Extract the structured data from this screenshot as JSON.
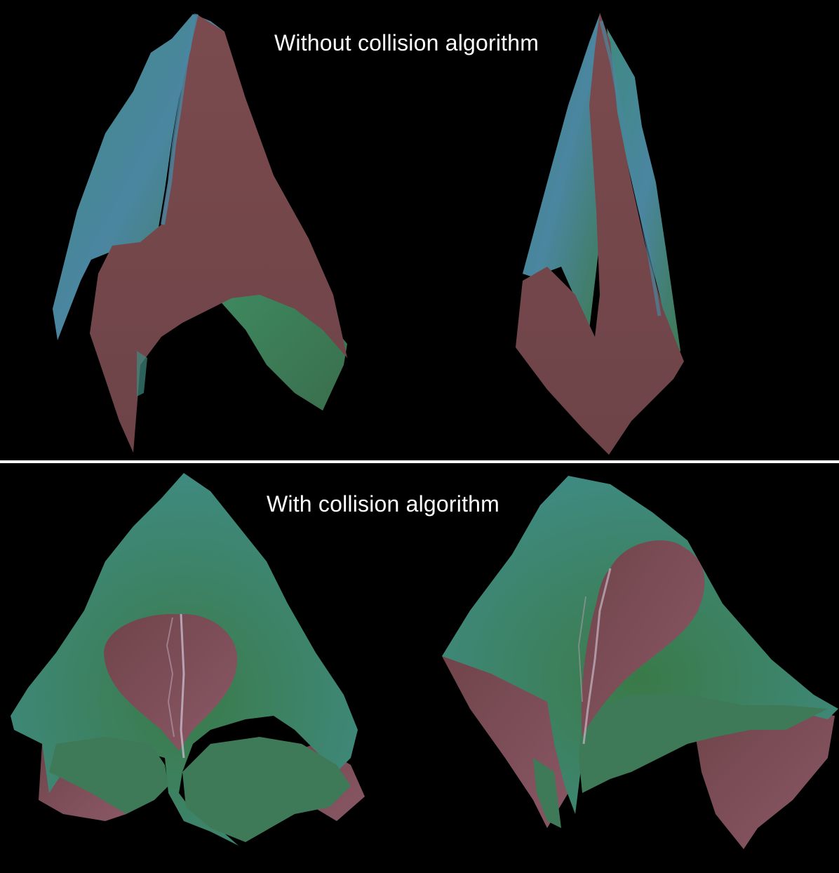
{
  "panels": {
    "top": {
      "caption": "Without collision algorithm"
    },
    "bottom": {
      "caption": "With collision algorithm"
    }
  },
  "colors": {
    "background": "#000000",
    "divider": "#ffffff",
    "caption_text": "#ffffff",
    "cloth_front_teal": "#3f8a80",
    "cloth_front_green": "#3e7a52",
    "cloth_highlight_blue": "#4a86a0",
    "cloth_back_maroon": "#74464a",
    "cloth_back_pink": "#8a5866"
  }
}
